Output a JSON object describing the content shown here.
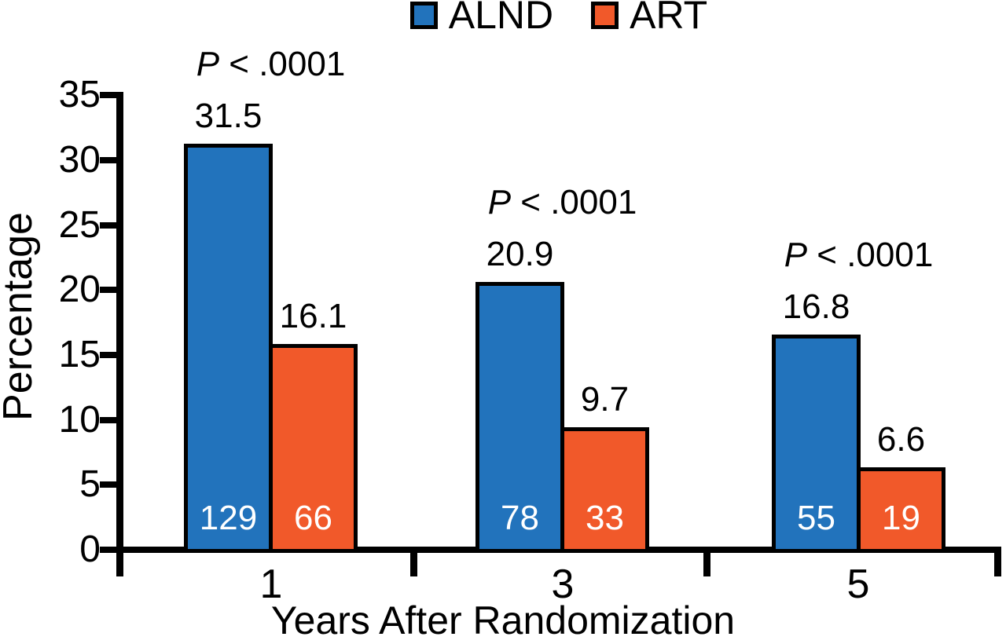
{
  "legend": {
    "items": [
      {
        "label": "ALND",
        "color": "#2273BC"
      },
      {
        "label": "ART",
        "color": "#F1592A"
      }
    ]
  },
  "axes": {
    "y_title": "Percentage",
    "x_title": "Years After Randomization",
    "y_ticks": [
      "0",
      "5",
      "10",
      "15",
      "20",
      "25",
      "30",
      "35"
    ]
  },
  "colors": {
    "bar_border": "#000000",
    "count_text": "#FFFFFF",
    "axis": "#000000"
  },
  "chart_data": {
    "type": "bar",
    "title": "",
    "xlabel": "Years After Randomization",
    "ylabel": "Percentage",
    "ylim": [
      0,
      35
    ],
    "y_tick_step": 5,
    "grid": false,
    "legend_position": "top-center",
    "categories": [
      "1",
      "3",
      "5"
    ],
    "series": [
      {
        "name": "ALND",
        "color": "#2273BC",
        "values": [
          31.5,
          20.9,
          16.8
        ],
        "bar_counts": [
          129,
          78,
          55
        ]
      },
      {
        "name": "ART",
        "color": "#F1592A",
        "values": [
          16.1,
          9.7,
          6.6
        ],
        "bar_counts": [
          66,
          33,
          19
        ]
      }
    ],
    "p_values": [
      "P < .0001",
      "P < .0001",
      "P < .0001"
    ],
    "groups": [
      {
        "category": "1",
        "p_italic": "P",
        "p_rest": " < .0001",
        "alnd_label": "31.5",
        "alnd_count": "129",
        "art_label": "16.1",
        "art_count": "66"
      },
      {
        "category": "3",
        "p_italic": "P",
        "p_rest": " < .0001",
        "alnd_label": "20.9",
        "alnd_count": "78",
        "art_label": "9.7",
        "art_count": "33"
      },
      {
        "category": "5",
        "p_italic": "P",
        "p_rest": " < .0001",
        "alnd_label": "16.8",
        "alnd_count": "55",
        "art_label": "6.6",
        "art_count": "19"
      }
    ]
  }
}
